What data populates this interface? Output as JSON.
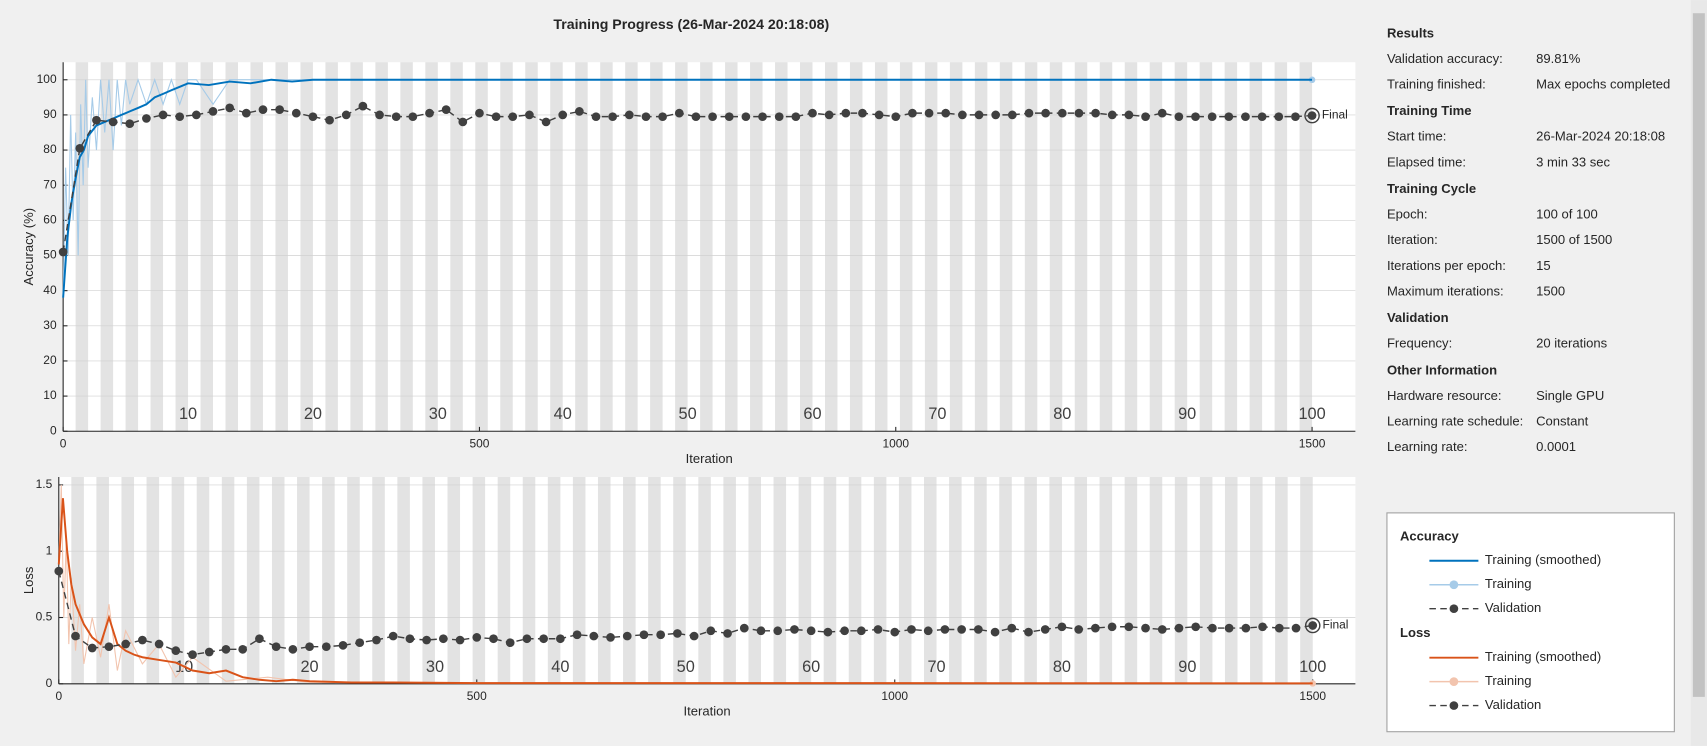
{
  "title": "Training Progress (26-Mar-2024 20:18:08)",
  "chart_data": [
    {
      "type": "line",
      "ylabel": "Accuracy (%)",
      "xlabel": "Iteration",
      "xlim": [
        0,
        1552
      ],
      "ylim": [
        0,
        105
      ],
      "xticks": [
        0,
        500,
        1000,
        1500
      ],
      "yticks": [
        0,
        10,
        20,
        30,
        40,
        50,
        60,
        70,
        80,
        90,
        100
      ],
      "grid": true,
      "epoch_labels": [
        10,
        20,
        30,
        40,
        50,
        60,
        70,
        80,
        90,
        100
      ],
      "final_label": "Final",
      "series": [
        {
          "name": "Training (smoothed)",
          "color": "#0072bd",
          "style": "smooth",
          "x": [
            0,
            5,
            10,
            15,
            20,
            25,
            30,
            40,
            50,
            60,
            70,
            80,
            90,
            100,
            110,
            120,
            130,
            140,
            150,
            175,
            200,
            225,
            250,
            275,
            300,
            1500
          ],
          "values": [
            38,
            55,
            65,
            72,
            78,
            80,
            84,
            87,
            88,
            89,
            90,
            91,
            92,
            93,
            95,
            96,
            97,
            98,
            99,
            98.5,
            99.5,
            99,
            100,
            99.5,
            100,
            100
          ]
        },
        {
          "name": "Training",
          "color": "#a6cbe8",
          "style": "raw",
          "x": [
            0,
            3,
            6,
            9,
            12,
            15,
            18,
            21,
            24,
            27,
            30,
            35,
            40,
            45,
            50,
            55,
            60,
            65,
            70,
            75,
            80,
            90,
            100,
            110,
            120,
            130,
            140,
            150,
            160,
            180,
            200,
            250,
            300,
            1500
          ],
          "values": [
            38,
            75,
            50,
            90,
            60,
            85,
            50,
            93,
            70,
            100,
            75,
            95,
            80,
            100,
            85,
            100,
            80,
            100,
            87,
            100,
            93,
            100,
            93,
            100,
            93,
            100,
            93,
            100,
            100,
            93,
            100,
            100,
            100,
            100
          ]
        },
        {
          "name": "Validation",
          "color": "#404040",
          "style": "validation",
          "x": [
            0,
            20,
            40,
            60,
            80,
            100,
            120,
            140,
            160,
            180,
            200,
            220,
            240,
            260,
            280,
            300,
            320,
            340,
            360,
            380,
            400,
            420,
            440,
            460,
            480,
            500,
            520,
            540,
            560,
            580,
            600,
            620,
            640,
            660,
            680,
            700,
            720,
            740,
            760,
            780,
            800,
            820,
            840,
            860,
            880,
            900,
            920,
            940,
            960,
            980,
            1000,
            1020,
            1040,
            1060,
            1080,
            1100,
            1120,
            1140,
            1160,
            1180,
            1200,
            1220,
            1240,
            1260,
            1280,
            1300,
            1320,
            1340,
            1360,
            1380,
            1400,
            1420,
            1440,
            1460,
            1480,
            1500
          ],
          "values": [
            51,
            80.5,
            88.5,
            88,
            87.5,
            89,
            90,
            89.5,
            90,
            91,
            92,
            90.5,
            91.5,
            91.5,
            90.5,
            89.5,
            88.5,
            90,
            92.5,
            90,
            89.5,
            89.5,
            90.5,
            91.5,
            88,
            90.5,
            89.5,
            89.5,
            90,
            88,
            90,
            91,
            89.5,
            89.5,
            90,
            89.5,
            89.5,
            90.5,
            89.5,
            89.5,
            89.5,
            89.5,
            89.5,
            89.5,
            89.5,
            90.5,
            90,
            90.5,
            90.5,
            90,
            89.5,
            90.5,
            90.5,
            90.5,
            90,
            90,
            90,
            90,
            90.5,
            90.5,
            90.5,
            90.5,
            90.5,
            90,
            90,
            89.5,
            90.5,
            89.5,
            89.5,
            89.5,
            89.5,
            89.5,
            89.5,
            89.5,
            89.5,
            89.81
          ]
        }
      ]
    },
    {
      "type": "line",
      "ylabel": "Loss",
      "xlabel": "Iteration",
      "xlim": [
        0,
        1551
      ],
      "ylim": [
        0,
        1.56
      ],
      "xticks": [
        0,
        500,
        1000,
        1500
      ],
      "yticks": [
        0,
        0.5,
        1,
        1.5
      ],
      "grid": true,
      "epoch_labels": [
        10,
        20,
        30,
        40,
        50,
        60,
        70,
        80,
        90,
        100
      ],
      "final_label": "Final",
      "series": [
        {
          "name": "Training (smoothed)",
          "color": "#d95319",
          "style": "smooth",
          "x": [
            0,
            5,
            10,
            15,
            20,
            30,
            40,
            50,
            60,
            70,
            80,
            90,
            100,
            120,
            140,
            160,
            180,
            200,
            220,
            240,
            260,
            280,
            300,
            350,
            400,
            500,
            700,
            1000,
            1500
          ],
          "values": [
            0.9,
            1.4,
            1.0,
            0.75,
            0.6,
            0.45,
            0.35,
            0.3,
            0.5,
            0.3,
            0.25,
            0.22,
            0.2,
            0.18,
            0.16,
            0.1,
            0.08,
            0.1,
            0.05,
            0.03,
            0.02,
            0.03,
            0.02,
            0.01,
            0.01,
            0.005,
            0.005,
            0.005,
            0.003
          ]
        },
        {
          "name": "Training",
          "color": "#f2c4ae",
          "style": "raw",
          "x": [
            0,
            3,
            6,
            9,
            12,
            15,
            20,
            25,
            30,
            40,
            50,
            60,
            70,
            80,
            100,
            120,
            140,
            160,
            200,
            250,
            300,
            1500
          ],
          "values": [
            0.9,
            1.5,
            0.5,
            1.1,
            0.3,
            0.8,
            0.25,
            0.6,
            0.15,
            0.5,
            0.2,
            0.6,
            0.1,
            0.4,
            0.15,
            0.3,
            0.05,
            0.2,
            0.02,
            0.05,
            0.01,
            0.003
          ]
        },
        {
          "name": "Validation",
          "color": "#404040",
          "style": "validation",
          "x": [
            0,
            20,
            40,
            60,
            80,
            100,
            120,
            140,
            160,
            180,
            200,
            220,
            240,
            260,
            280,
            300,
            320,
            340,
            360,
            380,
            400,
            420,
            440,
            460,
            480,
            500,
            520,
            540,
            560,
            580,
            600,
            620,
            640,
            660,
            680,
            700,
            720,
            740,
            760,
            780,
            800,
            820,
            840,
            860,
            880,
            900,
            920,
            940,
            960,
            980,
            1000,
            1020,
            1040,
            1060,
            1080,
            1100,
            1120,
            1140,
            1160,
            1180,
            1200,
            1220,
            1240,
            1260,
            1280,
            1300,
            1320,
            1340,
            1360,
            1380,
            1400,
            1420,
            1440,
            1460,
            1480,
            1500
          ],
          "values": [
            0.85,
            0.36,
            0.27,
            0.28,
            0.3,
            0.33,
            0.3,
            0.25,
            0.22,
            0.24,
            0.26,
            0.26,
            0.34,
            0.28,
            0.26,
            0.28,
            0.28,
            0.29,
            0.31,
            0.33,
            0.36,
            0.34,
            0.33,
            0.34,
            0.33,
            0.35,
            0.34,
            0.31,
            0.34,
            0.34,
            0.34,
            0.37,
            0.36,
            0.35,
            0.36,
            0.37,
            0.37,
            0.38,
            0.36,
            0.4,
            0.38,
            0.42,
            0.4,
            0.4,
            0.41,
            0.4,
            0.39,
            0.4,
            0.4,
            0.41,
            0.39,
            0.41,
            0.4,
            0.41,
            0.41,
            0.41,
            0.39,
            0.42,
            0.39,
            0.41,
            0.43,
            0.41,
            0.42,
            0.43,
            0.43,
            0.42,
            0.41,
            0.42,
            0.43,
            0.42,
            0.42,
            0.42,
            0.43,
            0.42,
            0.42,
            0.44
          ]
        }
      ]
    }
  ],
  "panel": {
    "sections": [
      {
        "title": "Results",
        "rows": [
          {
            "label": "Validation accuracy:",
            "value": "89.81%"
          },
          {
            "label": "Training finished:",
            "value": "Max epochs completed"
          }
        ]
      },
      {
        "title": "Training Time",
        "rows": [
          {
            "label": "Start time:",
            "value": "26-Mar-2024 20:18:08"
          },
          {
            "label": "Elapsed time:",
            "value": "3 min 33 sec"
          }
        ]
      },
      {
        "title": "Training Cycle",
        "rows": [
          {
            "label": "Epoch:",
            "value": "100 of 100"
          },
          {
            "label": "Iteration:",
            "value": "1500 of 1500"
          },
          {
            "label": "Iterations per epoch:",
            "value": 15
          },
          {
            "label": "Maximum iterations:",
            "value": 1500
          }
        ]
      },
      {
        "title": "Validation",
        "rows": [
          {
            "label": "Frequency:",
            "value": "20 iterations"
          }
        ]
      },
      {
        "title": "Other Information",
        "rows": [
          {
            "label": "Hardware resource:",
            "value": "Single GPU"
          },
          {
            "label": "Learning rate schedule:",
            "value": "Constant"
          },
          {
            "label": "Learning rate:",
            "value": "0.0001"
          }
        ]
      }
    ]
  },
  "legend": {
    "groups": [
      {
        "title": "Accuracy"
      },
      {
        "title": "Loss"
      }
    ]
  }
}
